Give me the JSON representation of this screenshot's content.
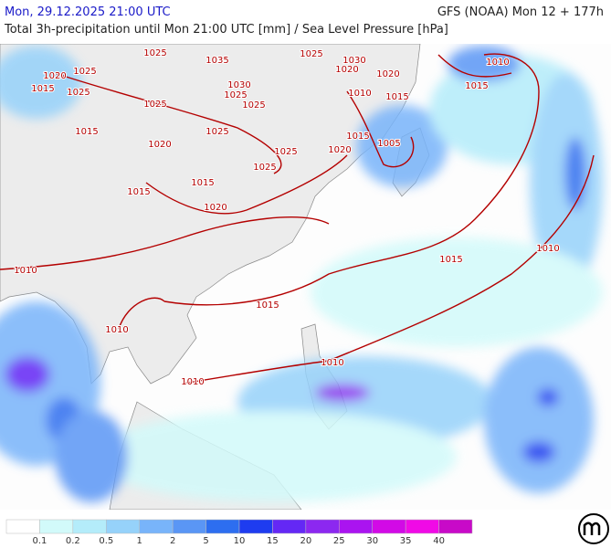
{
  "header": {
    "datetime": "Mon, 29.12.2025 21:00 UTC",
    "model": "GFS (NOAA) Mon 12 + 177h",
    "subtitle": "Total 3h-precipitation until Mon 21:00 UTC [mm] / Sea Level Pressure [hPa]"
  },
  "isobar_labels": [
    1025,
    1035,
    1025,
    1030,
    1020,
    1020,
    1010,
    1020,
    1025,
    1015,
    1025,
    1030,
    1025,
    1025,
    1010,
    1015,
    1015,
    1025,
    1015,
    1025,
    1015,
    1005,
    1020,
    1020,
    1025,
    1025,
    1015,
    1015,
    1020,
    1010,
    1015,
    1010,
    1015,
    1010,
    1010,
    1010
  ],
  "legend": {
    "colors": [
      "#ffffff",
      "#d2fafa",
      "#b4ecfa",
      "#96d2fa",
      "#78b4fa",
      "#5a96f5",
      "#2d6ef0",
      "#1e3cf0",
      "#6428f5",
      "#8c28f0",
      "#aa14f0",
      "#d20ae6",
      "#f00ae6",
      "#c80ac8"
    ],
    "labels": [
      0.1,
      0.2,
      0.5,
      1,
      2,
      5,
      10,
      15,
      20,
      25,
      30,
      35,
      40
    ]
  }
}
